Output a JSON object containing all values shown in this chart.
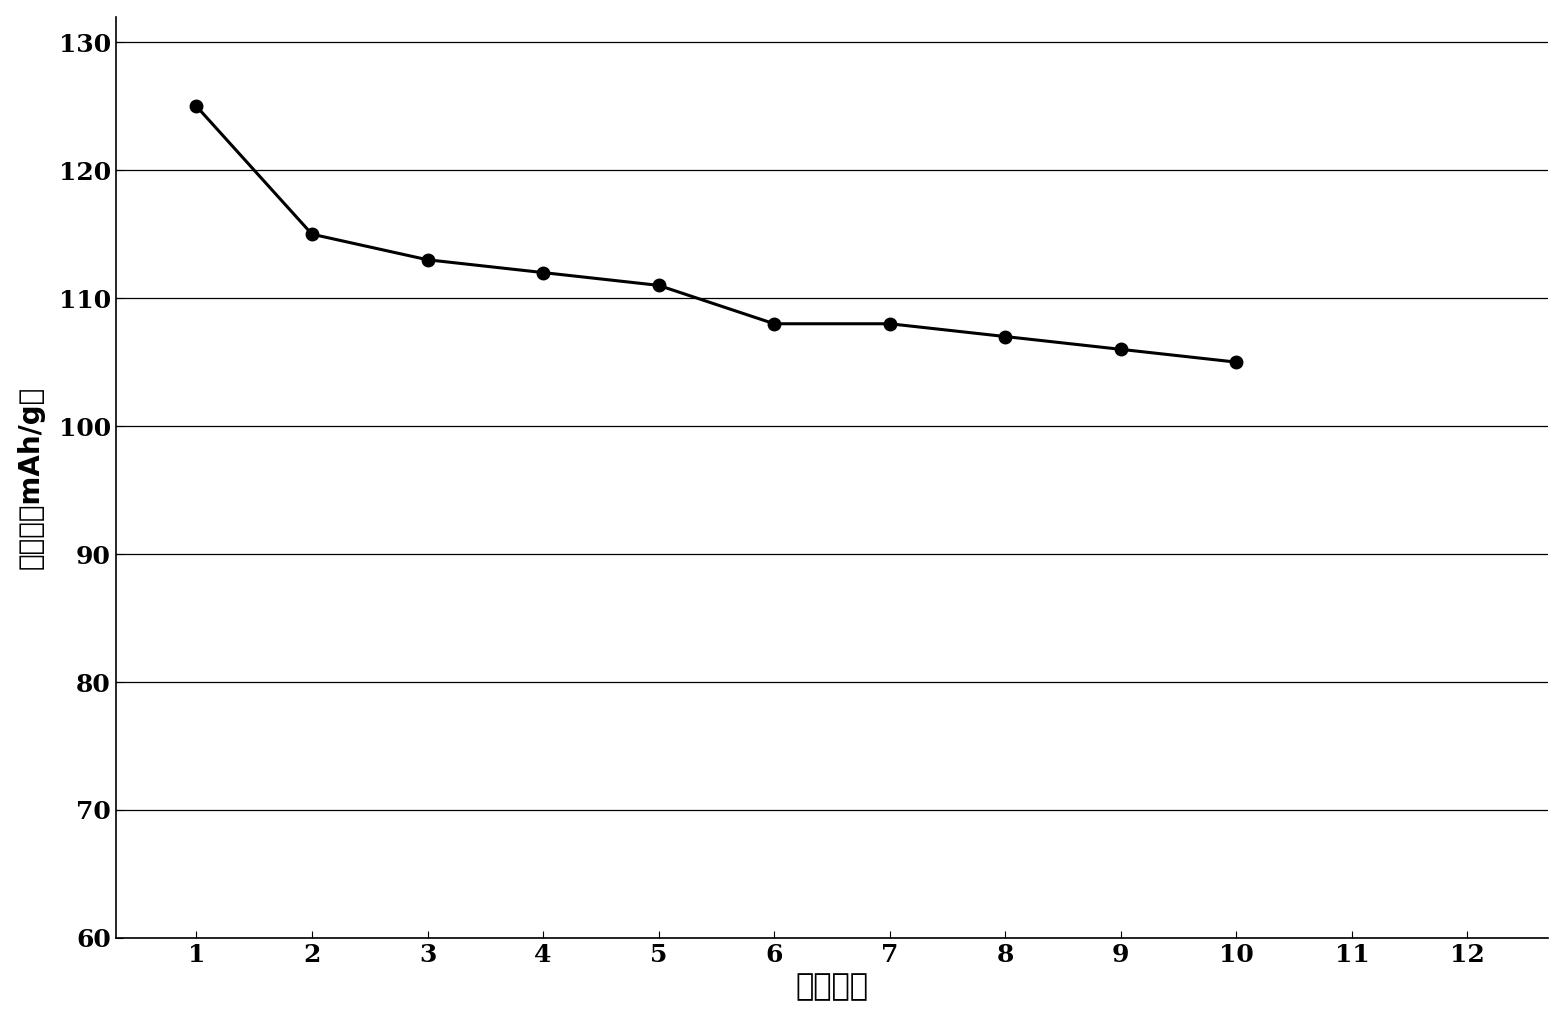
{
  "x": [
    1,
    2,
    3,
    4,
    5,
    6,
    7,
    8,
    9,
    10
  ],
  "y": [
    125,
    115,
    113,
    112,
    111,
    108,
    108,
    107,
    106,
    105
  ],
  "line_color": "#000000",
  "marker": "o",
  "marker_facecolor": "#000000",
  "marker_size": 9,
  "line_width": 2.2,
  "xlabel": "循环次数",
  "ylabel": "比容量（mAh/g）",
  "xlim": [
    0.3,
    12.7
  ],
  "ylim": [
    60,
    132
  ],
  "xtick_values": [
    1,
    2,
    3,
    4,
    5,
    6,
    7,
    8,
    9,
    10,
    11,
    12
  ],
  "ytick_values": [
    60,
    70,
    80,
    90,
    100,
    110,
    120,
    130
  ],
  "background_color": "#ffffff",
  "grid_color": "#000000",
  "xlabel_fontsize": 22,
  "ylabel_fontsize": 20,
  "tick_fontsize": 18
}
